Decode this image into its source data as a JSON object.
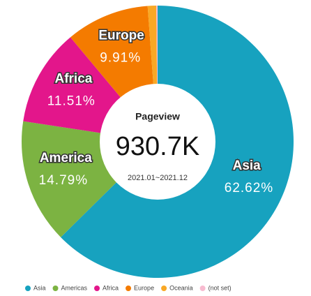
{
  "chart_data": {
    "type": "donut",
    "center_title": "Pageview",
    "center_value": "930.7K",
    "center_subtitle": "2021.01~2021.12",
    "categories": [
      "Asia",
      "Americas",
      "Africa",
      "Europe",
      "Oceania",
      "(not set)"
    ],
    "slice_labels": [
      "Asia",
      "America",
      "Africa",
      "Europe",
      null,
      null
    ],
    "values": [
      62.62,
      14.79,
      11.51,
      9.91,
      1.02,
      0.15
    ],
    "value_labels": [
      "62.62%",
      "14.79%",
      "11.51%",
      "9.91%",
      null,
      null
    ],
    "colors": [
      "#17a2bf",
      "#7cb342",
      "#e3168b",
      "#f47b00",
      "#f9a825",
      "#f8bbd0"
    ],
    "legend": "bottom"
  }
}
